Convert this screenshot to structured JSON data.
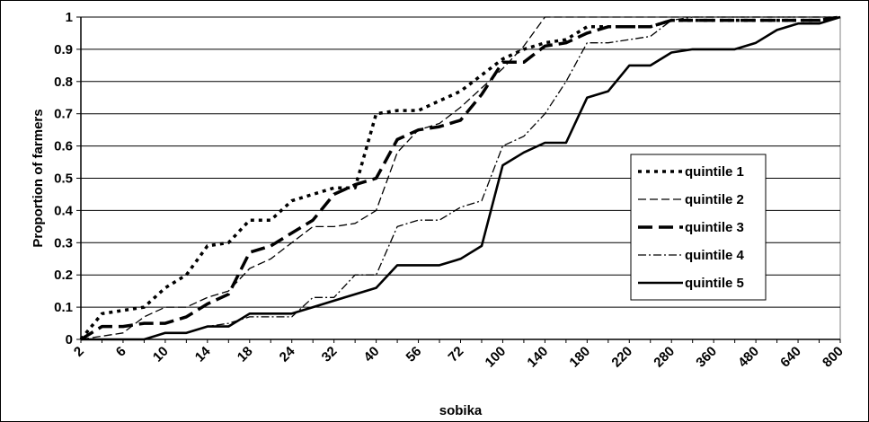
{
  "chart_data": {
    "type": "line",
    "xlabel": "sobika",
    "ylabel": "Proportion of farmers",
    "ylim": [
      0,
      1
    ],
    "grid": true,
    "legend_placement": "right",
    "x_tick_labels": [
      "2",
      "6",
      "10",
      "14",
      "18",
      "24",
      "32",
      "40",
      "56",
      "72",
      "100",
      "140",
      "180",
      "220",
      "280",
      "360",
      "480",
      "640",
      "800"
    ],
    "y_tick_labels": [
      "0",
      "0.1",
      "0.2",
      "0.3",
      "0.4",
      "0.5",
      "0.6",
      "0.7",
      "0.8",
      "0.9",
      "1"
    ],
    "x": [
      2,
      4,
      6,
      8,
      10,
      12,
      14,
      16,
      18,
      20,
      24,
      28,
      32,
      36,
      40,
      48,
      56,
      64,
      72,
      80,
      100,
      120,
      140,
      160,
      180,
      200,
      220,
      240,
      280,
      320,
      360,
      400,
      480,
      560,
      640,
      720,
      800
    ],
    "series": [
      {
        "name": "quintile 1",
        "values": [
          0,
          0.08,
          0.09,
          0.1,
          0.16,
          0.2,
          0.29,
          0.3,
          0.37,
          0.37,
          0.43,
          0.45,
          0.47,
          0.47,
          0.7,
          0.71,
          0.71,
          0.74,
          0.77,
          0.82,
          0.87,
          0.9,
          0.92,
          0.93,
          0.97,
          0.97,
          0.97,
          0.97,
          0.99,
          0.99,
          0.99,
          0.99,
          0.99,
          0.99,
          0.99,
          0.99,
          1
        ]
      },
      {
        "name": "quintile 2",
        "values": [
          0,
          0.01,
          0.02,
          0.07,
          0.1,
          0.1,
          0.13,
          0.15,
          0.22,
          0.25,
          0.3,
          0.35,
          0.35,
          0.36,
          0.4,
          0.58,
          0.65,
          0.67,
          0.72,
          0.78,
          0.84,
          0.91,
          1,
          1,
          1,
          1,
          1,
          1,
          1,
          1,
          1,
          1,
          1,
          1,
          1,
          1,
          1
        ]
      },
      {
        "name": "quintile 3",
        "values": [
          0,
          0.04,
          0.04,
          0.05,
          0.05,
          0.07,
          0.11,
          0.14,
          0.27,
          0.29,
          0.33,
          0.37,
          0.45,
          0.48,
          0.5,
          0.62,
          0.65,
          0.66,
          0.68,
          0.76,
          0.86,
          0.86,
          0.91,
          0.92,
          0.95,
          0.97,
          0.97,
          0.97,
          0.99,
          0.99,
          0.99,
          0.99,
          0.99,
          0.99,
          0.99,
          0.99,
          1
        ]
      },
      {
        "name": "quintile 4",
        "values": [
          0,
          0,
          0,
          0,
          0.02,
          0.02,
          0.04,
          0.05,
          0.07,
          0.07,
          0.07,
          0.13,
          0.13,
          0.2,
          0.2,
          0.35,
          0.37,
          0.37,
          0.41,
          0.43,
          0.6,
          0.63,
          0.7,
          0.8,
          0.92,
          0.92,
          0.93,
          0.94,
          0.99,
          1,
          1,
          1,
          1,
          1,
          1,
          1,
          1
        ]
      },
      {
        "name": "quintile 5",
        "values": [
          0,
          0,
          0,
          0,
          0.02,
          0.02,
          0.04,
          0.04,
          0.08,
          0.08,
          0.08,
          0.1,
          0.12,
          0.14,
          0.16,
          0.23,
          0.23,
          0.23,
          0.25,
          0.29,
          0.54,
          0.58,
          0.61,
          0.61,
          0.75,
          0.77,
          0.85,
          0.85,
          0.89,
          0.9,
          0.9,
          0.9,
          0.92,
          0.96,
          0.98,
          0.98,
          1
        ]
      }
    ]
  }
}
